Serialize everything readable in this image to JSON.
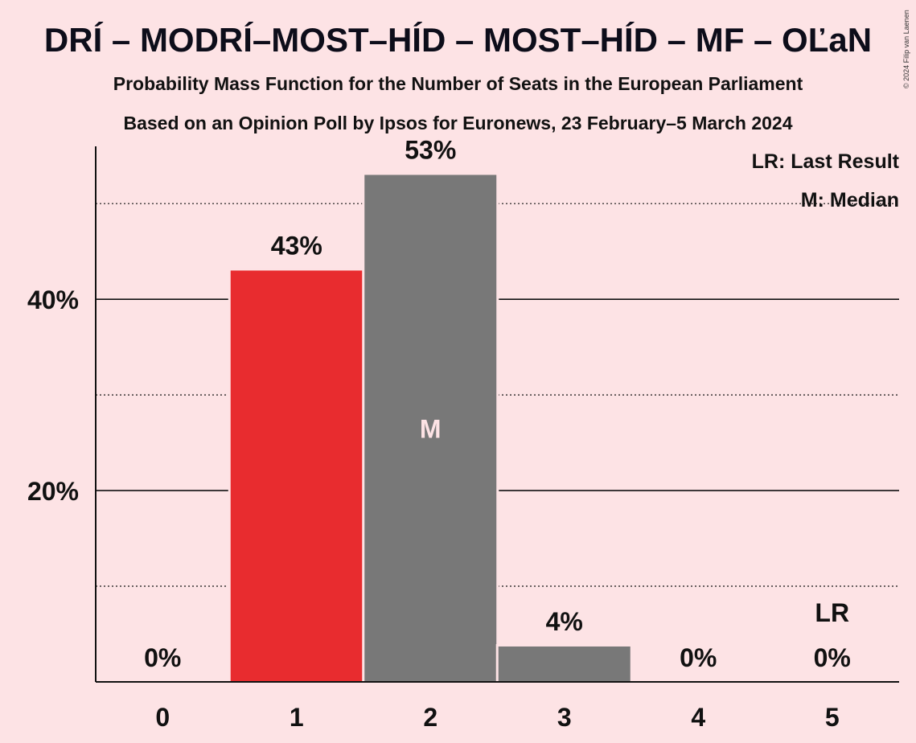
{
  "header": {
    "title": "DRÍ – MODRÍ–MOST–HÍD – MOST–HÍD – MF – OĽaN",
    "subtitle_1": "Probability Mass Function for the Number of Seats in the European Parliament",
    "subtitle_2": "Based on an Opinion Poll by Ipsos for Euronews, 23 February–5 March 2024",
    "copyright": "© 2024 Filip van Laenen"
  },
  "legend": {
    "last_result": "LR: Last Result",
    "median": "M: Median"
  },
  "chart_data": {
    "type": "bar",
    "categories": [
      "0",
      "1",
      "2",
      "3",
      "4",
      "5"
    ],
    "values": [
      0,
      43,
      53,
      3.7,
      0,
      0
    ],
    "value_labels": [
      "0%",
      "43%",
      "53%",
      "4%",
      "0%",
      "0%"
    ],
    "bar_colors": [
      "#E82C2F",
      "#E82C2F",
      "#787878",
      "#787878",
      "#787878",
      "#787878"
    ],
    "median_index": 2,
    "median_marker": "M",
    "last_result_index": 5,
    "last_result_marker": "LR",
    "ylim": [
      0,
      58
    ],
    "y_ticks_labeled": [
      {
        "value": 20,
        "label": "20%"
      },
      {
        "value": 40,
        "label": "40%"
      }
    ],
    "y_gridlines_dotted": [
      10,
      30,
      50
    ],
    "y_gridlines_solid": [
      20,
      40
    ],
    "xlabel": "",
    "ylabel": "",
    "legend_position": "top-right",
    "colors": {
      "background": "#FDE3E5",
      "accent": "#E82C2F",
      "neutral": "#787878",
      "median_text": "#FDE3E5"
    }
  }
}
